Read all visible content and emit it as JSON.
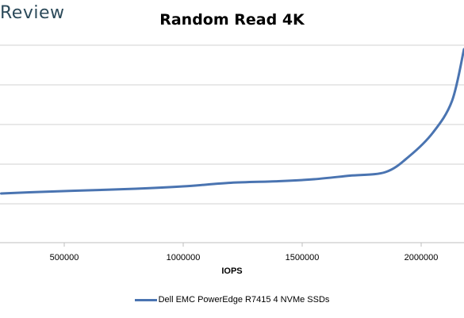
{
  "brand": "Review",
  "chart_data": {
    "type": "line",
    "title": "Random Read 4K",
    "xlabel": "IOPS",
    "ylabel": "",
    "x_ticks": [
      500000,
      1000000,
      1500000,
      2000000
    ],
    "xlim": [
      230000,
      2180000
    ],
    "grid": true,
    "legend_position": "bottom",
    "series": [
      {
        "name": "Dell EMC PowerEdge R7415 4 NVMe SSDs",
        "color": "#4a74b1",
        "points": [
          [
            235000,
            0.74
          ],
          [
            400000,
            0.7
          ],
          [
            600000,
            0.66
          ],
          [
            800000,
            0.62
          ],
          [
            1000000,
            0.56
          ],
          [
            1200000,
            0.47
          ],
          [
            1400000,
            0.43
          ],
          [
            1550000,
            0.38
          ],
          [
            1700000,
            0.29
          ],
          [
            1850000,
            0.2
          ],
          [
            1950000,
            -0.2
          ],
          [
            2050000,
            -0.8
          ],
          [
            2130000,
            -1.6
          ],
          [
            2180000,
            -2.9
          ]
        ]
      }
    ]
  }
}
